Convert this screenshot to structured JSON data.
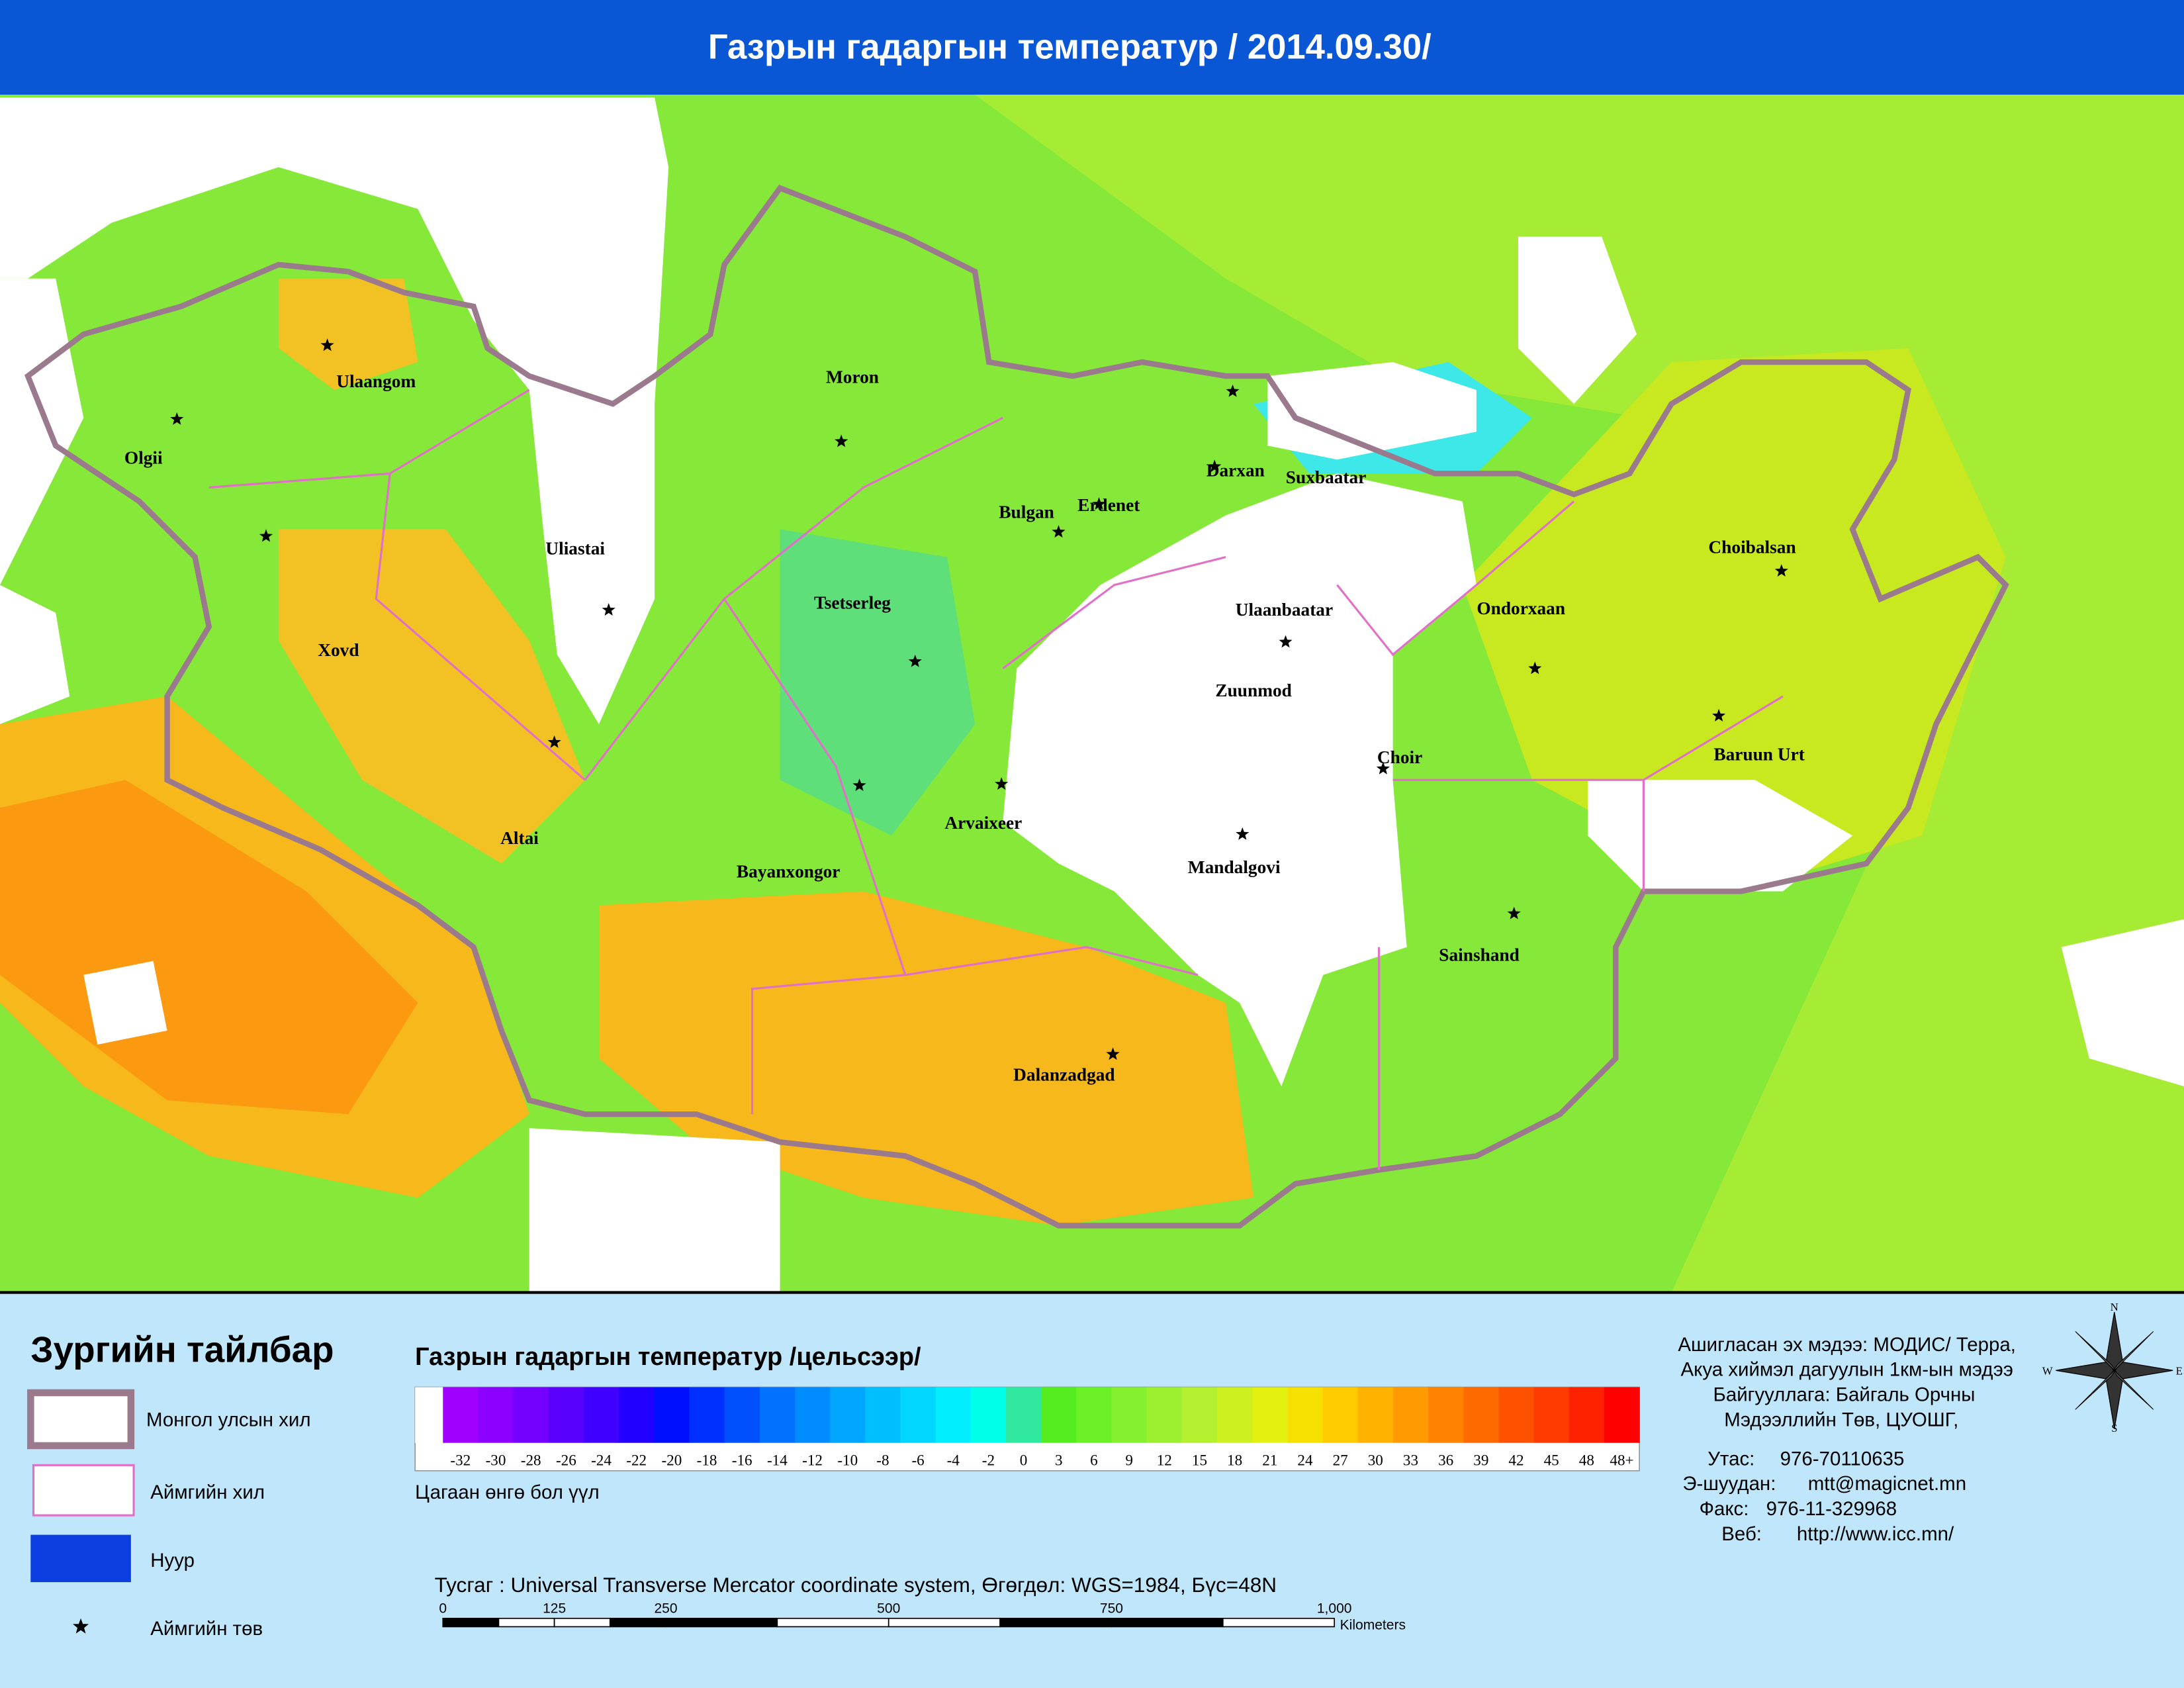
{
  "header": {
    "title": "Газрын гадаргын температур / 2014.09.30/"
  },
  "map": {
    "cities": [
      {
        "name": "Ulaangom"
      },
      {
        "name": "Olgii"
      },
      {
        "name": "Xovd"
      },
      {
        "name": "Uliastai"
      },
      {
        "name": "Moron"
      },
      {
        "name": "Tsetserleg"
      },
      {
        "name": "Altai"
      },
      {
        "name": "Bayanxongor"
      },
      {
        "name": "Arvaixeer"
      },
      {
        "name": "Bulgan"
      },
      {
        "name": "Erdenet"
      },
      {
        "name": "Darxan"
      },
      {
        "name": "Suxbaatar"
      },
      {
        "name": "Ulaanbaatar"
      },
      {
        "name": "Zuunmod"
      },
      {
        "name": "Choir"
      },
      {
        "name": "Mandalgovi"
      },
      {
        "name": "Dalanzadgad"
      },
      {
        "name": "Sainshand"
      },
      {
        "name": "Ondorxaan"
      },
      {
        "name": "Choibalsan"
      },
      {
        "name": "Baruun Urt"
      }
    ]
  },
  "legend": {
    "title": "Зургийн тайлбар",
    "items": [
      "Монгол улсын хил",
      "Аймгийн хил",
      "Нуур",
      "Аймгийн төв"
    ],
    "colorbar": {
      "title": "Газрын гадаргын температур /цельсээр/",
      "labels": [
        -32,
        -30,
        -28,
        -26,
        -24,
        -22,
        -20,
        -18,
        -16,
        -14,
        -12,
        -10,
        -8,
        -6,
        -4,
        -2,
        0,
        3,
        6,
        9,
        12,
        15,
        18,
        21,
        24,
        27,
        30,
        33,
        36,
        39,
        42,
        45,
        48,
        "48+"
      ],
      "colors": [
        "#a000ff",
        "#8c00ff",
        "#7400ff",
        "#5a00ff",
        "#4000ff",
        "#2200ff",
        "#0010ff",
        "#0030ff",
        "#0050ff",
        "#0070ff",
        "#008cff",
        "#00a6ff",
        "#00bfff",
        "#00d6ff",
        "#00eeff",
        "#00ffe8",
        "#30e8a0",
        "#55ec20",
        "#6cf028",
        "#84f030",
        "#9cf030",
        "#b4f030",
        "#ccf020",
        "#e4f010",
        "#f6e000",
        "#ffca00",
        "#ffb200",
        "#ff9a00",
        "#ff8200",
        "#ff6a00",
        "#ff5200",
        "#ff3a00",
        "#ff2200",
        "#ff0000"
      ],
      "note": "Цагаан өнгө бол үүл"
    },
    "projection": "Тусгаг : Universal Transverse Mercator coordinate system, Өгөгдөл: WGS=1984, Бүс=48N",
    "scalebar": {
      "labels": [
        0,
        125,
        250,
        500,
        750,
        "1,000"
      ],
      "unit": "Kilometers"
    },
    "credits": [
      "Ашигласан эх мэдээ: МОДИС/ Терра,",
      "Акуа хиймэл дагуулын 1км-ын мэдээ",
      "Байгууллага: Байгаль Орчны",
      "Мэдээллийн Төв, ЦУОШГ,"
    ],
    "contacts": [
      {
        "label": "Утас:",
        "value": "976-70110635"
      },
      {
        "label": "Э-шуудан:",
        "value": "mtt@magicnet.mn"
      },
      {
        "label": "Факс:",
        "value": "976-11-329968"
      },
      {
        "label": "Веб:",
        "value": "http://www.icc.mn/"
      }
    ],
    "compass": [
      "N",
      "E",
      "S",
      "W"
    ]
  }
}
